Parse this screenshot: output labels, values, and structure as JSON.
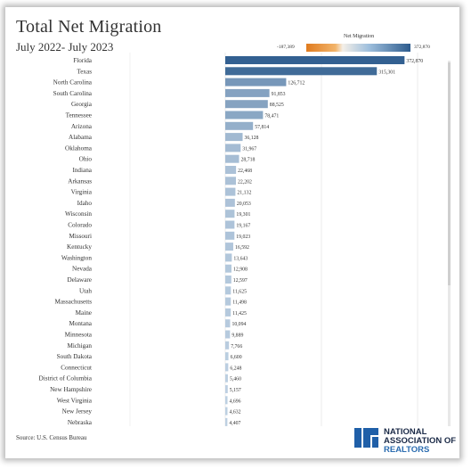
{
  "header": {
    "title": "Total Net Migration",
    "subtitle": "July 2022- July 2023"
  },
  "legend": {
    "title": "Net Migration",
    "min_label": "-187,389",
    "max_label": "372,870",
    "colors": [
      "#e07b1f",
      "#f4efe8",
      "#2d5b8d"
    ]
  },
  "footer": {
    "source": "Source: U.S. Census Bureau",
    "logo_line1": "NATIONAL",
    "logo_line2": "ASSOCIATION OF",
    "logo_line3": "REALTORS"
  },
  "chart_data": {
    "type": "bar",
    "orientation": "horizontal",
    "xlim": [
      0,
      400000
    ],
    "grid": true,
    "categories": [
      "Florida",
      "Texas",
      "North Carolina",
      "South Carolina",
      "Georgia",
      "Tennessee",
      "Arizona",
      "Alabama",
      "Oklahoma",
      "Ohio",
      "Indiana",
      "Arkansas",
      "Virginia",
      "Idaho",
      "Wisconsin",
      "Colorado",
      "Missouri",
      "Kentucky",
      "Washington",
      "Nevada",
      "Delaware",
      "Utah",
      "Massachusetts",
      "Maine",
      "Montana",
      "Minnesota",
      "Michigan",
      "South Dakota",
      "Connecticut",
      "District of Columbia",
      "New Hampshire",
      "West Virginia",
      "New Jersey",
      "Nebraska"
    ],
    "values": [
      372870,
      315301,
      126712,
      91853,
      88525,
      78471,
      57814,
      36128,
      31967,
      28718,
      22468,
      22202,
      21132,
      20053,
      19301,
      19167,
      19023,
      16592,
      13643,
      12908,
      12597,
      11625,
      11498,
      11425,
      10094,
      9889,
      7766,
      6600,
      6248,
      5460,
      5157,
      4696,
      4632,
      4407
    ],
    "value_labels": [
      "372,870",
      "315,301",
      "126,712",
      "91,853",
      "88,525",
      "78,471",
      "57,814",
      "36,128",
      "31,967",
      "28,718",
      "22,468",
      "22,202",
      "21,132",
      "20,053",
      "19,301",
      "19,167",
      "19,023",
      "16,592",
      "13,643",
      "12,908",
      "12,597",
      "11,625",
      "11,498",
      "11,425",
      "10,094",
      "9,889",
      "7,766",
      "6,600",
      "6,248",
      "5,460",
      "5,157",
      "4,696",
      "4,632",
      "4,407"
    ]
  }
}
